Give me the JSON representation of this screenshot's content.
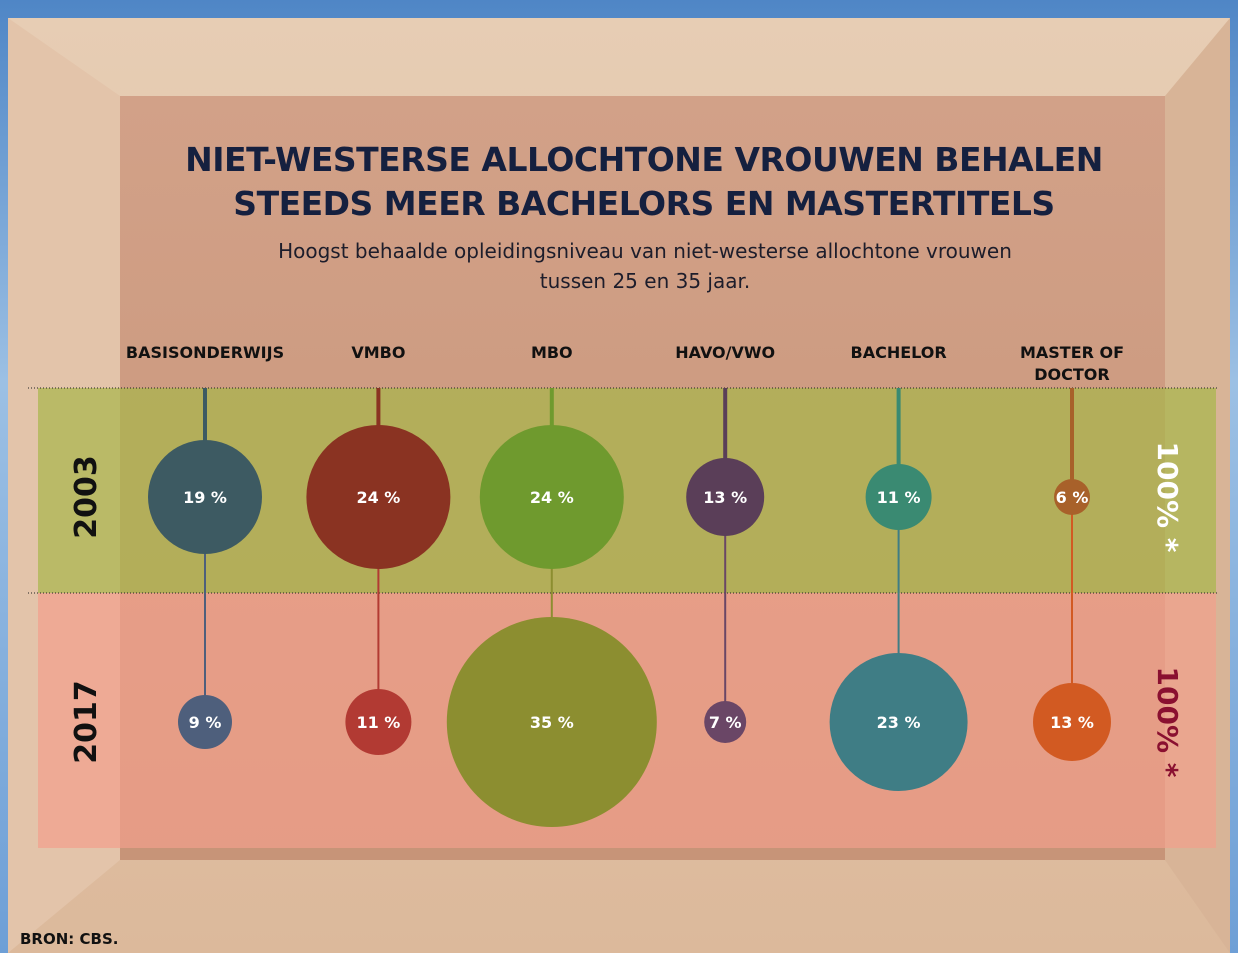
{
  "chart_data": {
    "type": "bubble",
    "title": "NIET-WESTERSE ALLOCHTONE VROUWEN BEHALEN STEEDS MEER BACHELORS EN MASTERTITELS",
    "subtitle": "Hoogst behaalde opleidingsniveau van niet-westerse allochtone vrouwen tussen 25 en 35 jaar.",
    "source": "BRON: CBS.",
    "categories": [
      "BASISONDERWIJS",
      "VMBO",
      "MBO",
      "HAVO/VWO",
      "BACHELOR",
      "MASTER OF DOCTOR"
    ],
    "series": [
      {
        "name": "2003",
        "total_label": "100% *",
        "band_color": "#a8b64a",
        "colors": [
          "#3d5a62",
          "#8a3322",
          "#6f9a2e",
          "#5a3e58",
          "#3a8a72",
          "#a8612a"
        ],
        "values": [
          19,
          24,
          24,
          13,
          11,
          6
        ],
        "value_labels": [
          "19 %",
          "24 %",
          "24 %",
          "13 %",
          "11 %",
          "6 %"
        ]
      },
      {
        "name": "2017",
        "total_label": "100% *",
        "band_color": "#f2a08c",
        "colors": [
          "#4e5f7c",
          "#b23a33",
          "#8c8e30",
          "#6a4666",
          "#3f7d85",
          "#d25a22"
        ],
        "values": [
          9,
          11,
          35,
          7,
          23,
          13
        ],
        "value_labels": [
          "9 %",
          "11 %",
          "35 %",
          "7 %",
          "23 %",
          "13 %"
        ]
      }
    ]
  }
}
